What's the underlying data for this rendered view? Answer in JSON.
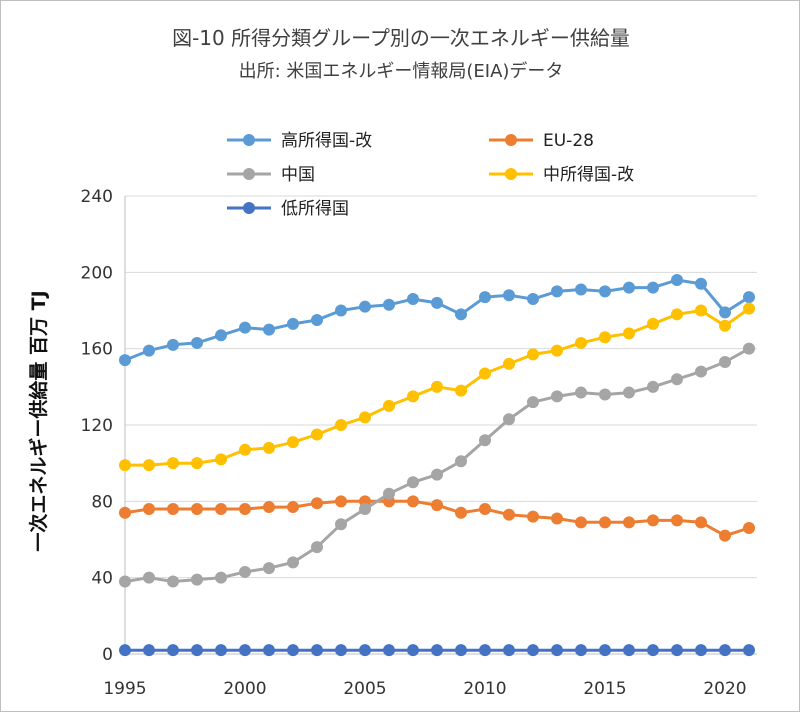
{
  "chart_data": {
    "type": "line",
    "title": "図-10 所得分類グループ別の一次エネルギー供給量",
    "subtitle": "出所: 米国エネルギー情報局(EIA)データ",
    "ylabel": "一次エネルギー供給量 百万 TJ",
    "xlabel": "",
    "ylim": [
      0,
      240
    ],
    "xlim": [
      1995,
      2021
    ],
    "y_ticks": [
      0,
      40,
      80,
      120,
      160,
      200,
      240
    ],
    "x_ticks": [
      1995,
      2000,
      2005,
      2010,
      2015,
      2020
    ],
    "grid": "horizontal",
    "legend_position": "top",
    "x": [
      1995,
      1996,
      1997,
      1998,
      1999,
      2000,
      2001,
      2002,
      2003,
      2004,
      2005,
      2006,
      2007,
      2008,
      2009,
      2010,
      2011,
      2012,
      2013,
      2014,
      2015,
      2016,
      2017,
      2018,
      2019,
      2020,
      2021
    ],
    "series": [
      {
        "name": "高所得国-改",
        "color": "#5b9bd5",
        "values": [
          154,
          159,
          162,
          163,
          167,
          171,
          170,
          173,
          175,
          180,
          182,
          183,
          186,
          184,
          178,
          187,
          188,
          186,
          190,
          191,
          190,
          192,
          192,
          196,
          194,
          179,
          187
        ]
      },
      {
        "name": "EU-28",
        "color": "#ed7d31",
        "values": [
          74,
          76,
          76,
          76,
          76,
          76,
          77,
          77,
          79,
          80,
          80,
          80,
          80,
          78,
          74,
          76,
          73,
          72,
          71,
          69,
          69,
          69,
          70,
          70,
          69,
          62,
          66
        ]
      },
      {
        "name": "中国",
        "color": "#a5a5a5",
        "values": [
          38,
          40,
          38,
          39,
          40,
          43,
          45,
          48,
          56,
          68,
          76,
          84,
          90,
          94,
          101,
          112,
          123,
          132,
          135,
          137,
          136,
          137,
          140,
          144,
          148,
          153,
          160
        ]
      },
      {
        "name": "中所得国-改",
        "color": "#ffc000",
        "values": [
          99,
          99,
          100,
          100,
          102,
          107,
          108,
          111,
          115,
          120,
          124,
          130,
          135,
          140,
          138,
          147,
          152,
          157,
          159,
          163,
          166,
          168,
          173,
          178,
          180,
          172,
          181
        ]
      },
      {
        "name": "低所得国",
        "color": "#4472c4",
        "values": [
          2,
          2,
          2,
          2,
          2,
          2,
          2,
          2,
          2,
          2,
          2,
          2,
          2,
          2,
          2,
          2,
          2,
          2,
          2,
          2,
          2,
          2,
          2,
          2,
          2,
          2,
          2
        ]
      }
    ]
  }
}
